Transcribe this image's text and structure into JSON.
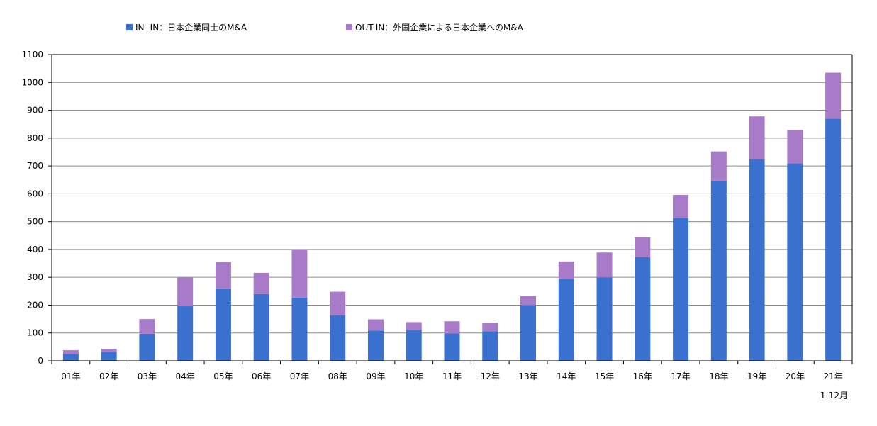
{
  "chart_data": {
    "type": "bar",
    "stacked": true,
    "categories": [
      "01年",
      "02年",
      "03年",
      "04年",
      "05年",
      "06年",
      "07年",
      "08年",
      "09年",
      "10年",
      "11年",
      "12年",
      "13年",
      "14年",
      "15年",
      "16年",
      "17年",
      "18年",
      "19年",
      "20年",
      "21年"
    ],
    "series": [
      {
        "name": "IN -IN：日本企業同士のM&A",
        "color": "#3A71CF",
        "values": [
          25,
          32,
          97,
          196,
          258,
          240,
          227,
          164,
          109,
          110,
          98,
          106,
          200,
          294,
          300,
          372,
          512,
          647,
          724,
          709,
          870
        ]
      },
      {
        "name": "OUT-IN：外国企業による日本企業へのM&A",
        "color": "#A77BC8",
        "values": [
          13,
          11,
          53,
          103,
          97,
          76,
          173,
          84,
          40,
          29,
          44,
          31,
          32,
          63,
          89,
          72,
          84,
          105,
          154,
          120,
          165
        ]
      }
    ],
    "ylim": [
      0,
      1100
    ],
    "yticks": [
      0,
      100,
      200,
      300,
      400,
      500,
      600,
      700,
      800,
      900,
      1000,
      1100
    ],
    "grid": true,
    "legend_position": "top",
    "note": "1-12月"
  }
}
